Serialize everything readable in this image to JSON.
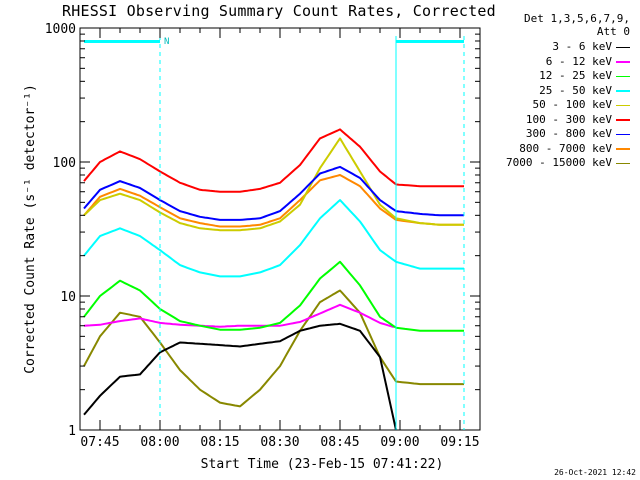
{
  "chart_data": {
    "type": "line",
    "title": "RHESSI Observing Summary Count Rates, Corrected",
    "xlabel": "Start Time (23-Feb-15 07:41:22)",
    "ylabel": "Corrected Count Rate (s⁻¹ detector⁻¹)",
    "ylog": true,
    "ylim": [
      1,
      1000
    ],
    "y_ticks": [
      "1",
      "10",
      "100",
      "1000"
    ],
    "x_time_range": [
      "07:40",
      "09:20"
    ],
    "x_ticks": [
      "07:45",
      "08:00",
      "08:15",
      "08:30",
      "08:45",
      "09:00",
      "09:15"
    ],
    "legend_header": [
      "Det 1,3,5,6,7,9,",
      "Att 0"
    ],
    "markers": {
      "night_start": "07:41",
      "night_end": "08:00",
      "saa_start": "08:59",
      "saa_end": "09:16",
      "flag_label": "N"
    },
    "timestamp": "26-Oct-2021 12:42",
    "series": [
      {
        "name": "3 - 6 keV",
        "color": "#000000",
        "x": [
          "07:41",
          "07:45",
          "07:50",
          "07:55",
          "08:00",
          "08:05",
          "08:10",
          "08:15",
          "08:20",
          "08:25",
          "08:30",
          "08:35",
          "08:40",
          "08:45",
          "08:50",
          "08:55",
          "08:59"
        ],
        "y": [
          1.3,
          1.8,
          2.5,
          2.6,
          3.8,
          4.5,
          4.4,
          4.3,
          4.2,
          4.4,
          4.6,
          5.5,
          6.0,
          6.2,
          5.5,
          3.5,
          1.0
        ]
      },
      {
        "name": "6 - 12 keV",
        "color": "#ff00ff",
        "x": [
          "07:41",
          "07:45",
          "07:50",
          "07:55",
          "08:00",
          "08:05",
          "08:10",
          "08:15",
          "08:20",
          "08:25",
          "08:30",
          "08:35",
          "08:40",
          "08:45",
          "08:50",
          "08:55",
          "08:59",
          "09:05",
          "09:10",
          "09:16"
        ],
        "y": [
          6.0,
          6.1,
          6.5,
          6.8,
          6.3,
          6.1,
          6.0,
          5.9,
          6.0,
          6.0,
          6.0,
          6.4,
          7.4,
          8.6,
          7.5,
          6.3,
          5.8,
          null,
          null,
          null
        ]
      },
      {
        "name": "12 - 25 keV",
        "color": "#00ff00",
        "x": [
          "07:41",
          "07:45",
          "07:50",
          "07:55",
          "08:00",
          "08:05",
          "08:10",
          "08:15",
          "08:20",
          "08:25",
          "08:30",
          "08:35",
          "08:40",
          "08:45",
          "08:50",
          "08:55",
          "08:59",
          "09:05",
          "09:10",
          "09:16"
        ],
        "y": [
          7.0,
          10.0,
          13.0,
          11.0,
          8.0,
          6.5,
          6.0,
          5.6,
          5.6,
          5.8,
          6.3,
          8.5,
          13.5,
          18.0,
          12.0,
          7.0,
          5.8,
          5.5,
          5.5,
          5.5
        ]
      },
      {
        "name": "25 - 50 keV",
        "color": "#00ffff",
        "x": [
          "07:41",
          "07:45",
          "07:50",
          "07:55",
          "08:00",
          "08:05",
          "08:10",
          "08:15",
          "08:20",
          "08:25",
          "08:30",
          "08:35",
          "08:40",
          "08:45",
          "08:50",
          "08:55",
          "08:59",
          "09:05",
          "09:10",
          "09:16"
        ],
        "y": [
          20,
          28,
          32,
          28,
          22,
          17,
          15,
          14,
          14,
          15,
          17,
          24,
          38,
          52,
          36,
          22,
          18,
          16,
          16,
          16
        ]
      },
      {
        "name": "50 - 100 keV",
        "color": "#cccc00",
        "x": [
          "07:41",
          "07:45",
          "07:50",
          "07:55",
          "08:00",
          "08:05",
          "08:10",
          "08:15",
          "08:20",
          "08:25",
          "08:30",
          "08:35",
          "08:40",
          "08:45",
          "08:50",
          "08:55",
          "08:59",
          "09:05",
          "09:10",
          "09:16"
        ],
        "y": [
          40,
          52,
          58,
          52,
          42,
          35,
          32,
          31,
          31,
          32,
          36,
          48,
          90,
          150,
          85,
          48,
          38,
          35,
          34,
          34
        ]
      },
      {
        "name": "100 - 300 keV",
        "color": "#ff0000",
        "x": [
          "07:41",
          "07:45",
          "07:50",
          "07:55",
          "08:00",
          "08:05",
          "08:10",
          "08:15",
          "08:20",
          "08:25",
          "08:30",
          "08:35",
          "08:40",
          "08:45",
          "08:50",
          "08:55",
          "08:59",
          "09:05",
          "09:10",
          "09:16"
        ],
        "y": [
          72,
          100,
          120,
          105,
          85,
          70,
          62,
          60,
          60,
          63,
          70,
          95,
          150,
          175,
          130,
          85,
          68,
          66,
          66,
          66
        ]
      },
      {
        "name": "300 - 800 keV",
        "color": "#0000ff",
        "x": [
          "07:41",
          "07:45",
          "07:50",
          "07:55",
          "08:00",
          "08:05",
          "08:10",
          "08:15",
          "08:20",
          "08:25",
          "08:30",
          "08:35",
          "08:40",
          "08:45",
          "08:50",
          "08:55",
          "08:59",
          "09:05",
          "09:10",
          "09:16"
        ],
        "y": [
          45,
          62,
          72,
          64,
          52,
          43,
          39,
          37,
          37,
          38,
          43,
          58,
          82,
          92,
          76,
          52,
          43,
          41,
          40,
          40
        ]
      },
      {
        "name": "800 - 7000 keV",
        "color": "#ff8800",
        "x": [
          "07:41",
          "07:45",
          "07:50",
          "07:55",
          "08:00",
          "08:05",
          "08:10",
          "08:15",
          "08:20",
          "08:25",
          "08:30",
          "08:35",
          "08:40",
          "08:45",
          "08:50",
          "08:55",
          "08:59",
          "09:05",
          "09:10",
          "09:16"
        ],
        "y": [
          40,
          55,
          63,
          56,
          46,
          38,
          35,
          33,
          33,
          34,
          38,
          52,
          73,
          80,
          66,
          45,
          37,
          35,
          34,
          34
        ]
      },
      {
        "name": "7000 - 15000 keV",
        "color": "#888800",
        "x": [
          "07:41",
          "07:45",
          "07:50",
          "07:55",
          "08:00",
          "08:05",
          "08:10",
          "08:15",
          "08:20",
          "08:25",
          "08:30",
          "08:35",
          "08:40",
          "08:45",
          "08:50",
          "08:55",
          "08:59",
          "09:05",
          "09:10",
          "09:16"
        ],
        "y": [
          3.0,
          5.0,
          7.5,
          7.0,
          4.5,
          2.8,
          2.0,
          1.6,
          1.5,
          2.0,
          3.0,
          5.5,
          9.0,
          11.0,
          7.5,
          3.5,
          2.3,
          2.2,
          2.2,
          2.2
        ]
      }
    ]
  }
}
